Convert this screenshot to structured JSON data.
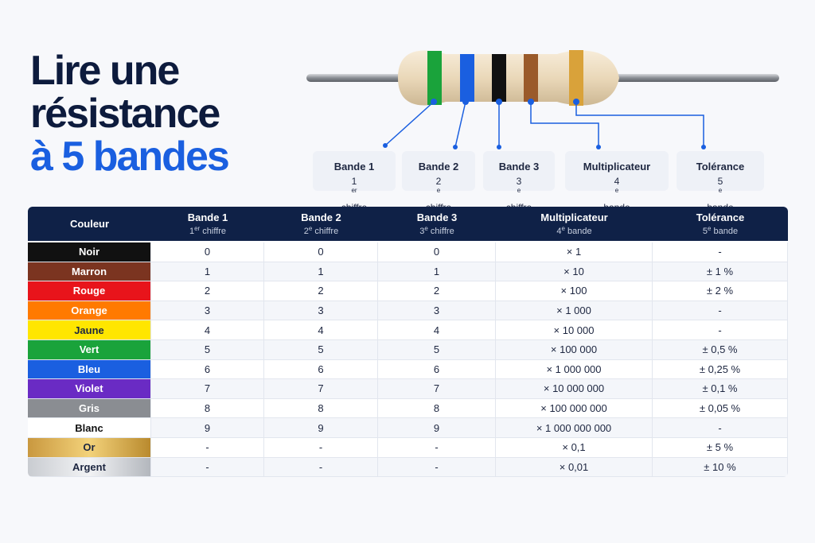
{
  "title": {
    "lines": [
      "Lire une",
      "résistance",
      "à 5 bandes"
    ]
  },
  "labels": [
    {
      "title": "Bande 1",
      "num": "1",
      "sup": "er",
      "rest": " chiffre"
    },
    {
      "title": "Bande 2",
      "num": "2",
      "sup": "e",
      "rest": " chiffre"
    },
    {
      "title": "Bande 3",
      "num": "3",
      "sup": "e",
      "rest": " chiffre"
    },
    {
      "title": "Multiplicateur",
      "num": "4",
      "sup": "e",
      "rest": " bande"
    },
    {
      "title": "Tolérance",
      "num": "5",
      "sup": "e",
      "rest": " bande"
    }
  ],
  "table": {
    "header": {
      "first": "Couleur",
      "columns": [
        {
          "title": "Bande 1",
          "num": "1",
          "sup": "er",
          "rest": " chiffre"
        },
        {
          "title": "Bande 2",
          "num": "2",
          "sup": "e",
          "rest": " chiffre"
        },
        {
          "title": "Bande 3",
          "num": "3",
          "sup": "e",
          "rest": " chiffre"
        },
        {
          "title": "Multiplicateur",
          "num": "4",
          "sup": "e",
          "rest": " bande"
        },
        {
          "title": "Tolérance",
          "num": "5",
          "sup": "e",
          "rest": " bande"
        }
      ]
    },
    "rows": [
      [
        "Noir",
        "0",
        "0",
        "0",
        "× 1",
        "-"
      ],
      [
        "Marron",
        "1",
        "1",
        "1",
        "× 10",
        "± 1 %"
      ],
      [
        "Rouge",
        "2",
        "2",
        "2",
        "× 100",
        "± 2 %"
      ],
      [
        "Orange",
        "3",
        "3",
        "3",
        "× 1 000",
        "-"
      ],
      [
        "Jaune",
        "4",
        "4",
        "4",
        "× 10 000",
        "-"
      ],
      [
        "Vert",
        "5",
        "5",
        "5",
        "× 100 000",
        "± 0,5 %"
      ],
      [
        "Bleu",
        "6",
        "6",
        "6",
        "× 1 000 000",
        "± 0,25 %"
      ],
      [
        "Violet",
        "7",
        "7",
        "7",
        "× 10 000 000",
        "± 0,1 %"
      ],
      [
        "Gris",
        "8",
        "8",
        "8",
        "× 100 000 000",
        "± 0,05 %"
      ],
      [
        "Blanc",
        "9",
        "9",
        "9",
        "× 1 000 000 000",
        "-"
      ],
      [
        "Or",
        "-",
        "-",
        "-",
        "× 0,1",
        "± 5 %"
      ],
      [
        "Argent",
        "-",
        "-",
        "-",
        "× 0,01",
        "± 10 %"
      ]
    ]
  }
}
